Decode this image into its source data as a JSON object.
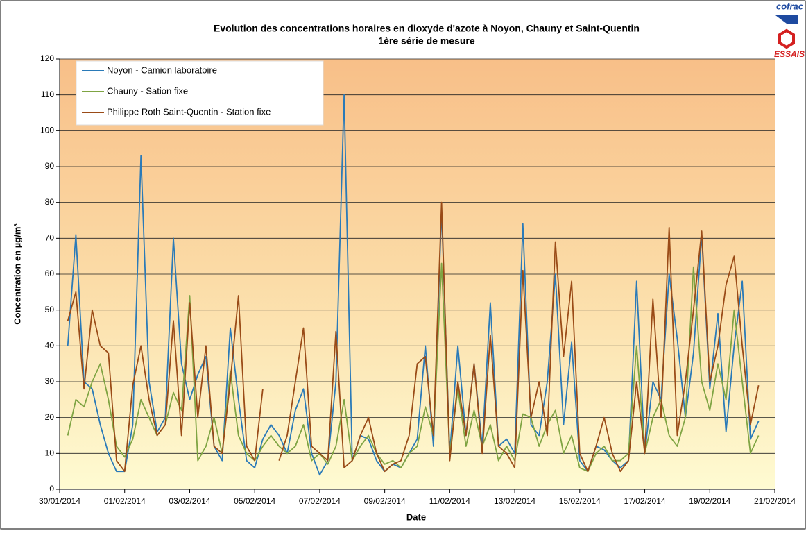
{
  "chart_data": {
    "type": "line",
    "title": "Evolution des concentrations horaires en dioxyde d'azote à Noyon, Chauny et Saint-Quentin",
    "subtitle": "1ère série de mesure",
    "x_label": "Date",
    "y_label": "Concentration en µg/m³",
    "logo": [
      "cofrac",
      "ESSAIS"
    ],
    "xlim": [
      0,
      22
    ],
    "xticks": [
      {
        "value": 0,
        "label": "30/01/2014"
      },
      {
        "value": 2,
        "label": "01/02/2014"
      },
      {
        "value": 4,
        "label": "03/02/2014"
      },
      {
        "value": 6,
        "label": "05/02/2014"
      },
      {
        "value": 8,
        "label": "07/02/2014"
      },
      {
        "value": 10,
        "label": "09/02/2014"
      },
      {
        "value": 12,
        "label": "11/02/2014"
      },
      {
        "value": 14,
        "label": "13/02/2014"
      },
      {
        "value": 16,
        "label": "15/02/2014"
      },
      {
        "value": 18,
        "label": "17/02/2014"
      },
      {
        "value": 20,
        "label": "19/02/2014"
      },
      {
        "value": 22,
        "label": "21/02/2014"
      }
    ],
    "ylim": [
      0,
      120
    ],
    "yticks": [
      0,
      10,
      20,
      30,
      40,
      50,
      60,
      70,
      80,
      90,
      100,
      110,
      120
    ],
    "grid": true,
    "legend": "upper left",
    "x": [
      0.25,
      0.5,
      0.75,
      1,
      1.25,
      1.5,
      1.75,
      2,
      2.25,
      2.5,
      2.75,
      3,
      3.25,
      3.5,
      3.75,
      4,
      4.25,
      4.5,
      4.75,
      5,
      5.25,
      5.5,
      5.75,
      6,
      6.25,
      6.5,
      6.75,
      7,
      7.25,
      7.5,
      7.75,
      8,
      8.25,
      8.5,
      8.75,
      9,
      9.25,
      9.5,
      9.75,
      10,
      10.25,
      10.5,
      10.75,
      11,
      11.25,
      11.5,
      11.75,
      12,
      12.25,
      12.5,
      12.75,
      13,
      13.25,
      13.5,
      13.75,
      14,
      14.25,
      14.5,
      14.75,
      15,
      15.25,
      15.5,
      15.75,
      16,
      16.25,
      16.5,
      16.75,
      17,
      17.25,
      17.5,
      17.75,
      18,
      18.25,
      18.5,
      18.75,
      19,
      19.25,
      19.5,
      19.75,
      20,
      20.25,
      20.5,
      20.75,
      21,
      21.25,
      21.5
    ],
    "series": [
      {
        "name": "Noyon - Camion laboratoire",
        "color": "#2a7ab8",
        "values": [
          40,
          71,
          30,
          28,
          18,
          10,
          5,
          5,
          18,
          93,
          30,
          16,
          20,
          70,
          35,
          25,
          32,
          37,
          12,
          8,
          45,
          25,
          8,
          6,
          14,
          18,
          15,
          10,
          22,
          28,
          10,
          4,
          8,
          30,
          110,
          8,
          15,
          14,
          8,
          5,
          7,
          6,
          10,
          14,
          40,
          12,
          78,
          10,
          40,
          15,
          35,
          12,
          52,
          12,
          14,
          10,
          74,
          18,
          15,
          30,
          60,
          18,
          41,
          8,
          5,
          12,
          11,
          8,
          6,
          8,
          58,
          10,
          30,
          25,
          60,
          42,
          20,
          38,
          71,
          28,
          49,
          16,
          40,
          58,
          14,
          19
        ]
      },
      {
        "name": "Chauny - Sation fixe",
        "color": "#7fa443",
        "values": [
          15,
          25,
          23,
          30,
          35,
          25,
          12,
          9,
          14,
          25,
          20,
          15,
          18,
          27,
          22,
          54,
          8,
          12,
          20,
          10,
          33,
          15,
          10,
          8,
          12,
          15,
          12,
          10,
          12,
          18,
          8,
          10,
          7,
          12,
          25,
          8,
          12,
          15,
          10,
          7,
          8,
          6,
          10,
          12,
          23,
          15,
          63,
          10,
          28,
          12,
          22,
          12,
          18,
          8,
          12,
          8,
          21,
          20,
          12,
          18,
          22,
          10,
          15,
          6,
          5,
          10,
          12,
          8,
          8,
          10,
          40,
          10,
          20,
          25,
          15,
          12,
          20,
          62,
          30,
          22,
          35,
          25,
          50,
          30,
          10,
          15
        ]
      },
      {
        "name": "Philippe Roth Saint-Quentin - Station fixe",
        "color": "#9a4b17",
        "values": [
          47,
          55,
          28,
          50,
          40,
          38,
          8,
          5,
          29,
          40,
          25,
          15,
          18,
          47,
          15,
          52,
          20,
          40,
          12,
          10,
          30,
          54,
          12,
          8,
          28,
          null,
          8,
          15,
          30,
          45,
          12,
          10,
          8,
          44,
          6,
          8,
          15,
          20,
          10,
          5,
          7,
          8,
          15,
          35,
          37,
          15,
          80,
          8,
          30,
          15,
          35,
          10,
          43,
          12,
          10,
          6,
          61,
          20,
          30,
          15,
          69,
          37,
          58,
          10,
          5,
          12,
          20,
          10,
          5,
          8,
          30,
          10,
          53,
          20,
          73,
          15,
          30,
          50,
          72,
          30,
          40,
          57,
          65,
          40,
          18,
          29
        ]
      }
    ]
  }
}
